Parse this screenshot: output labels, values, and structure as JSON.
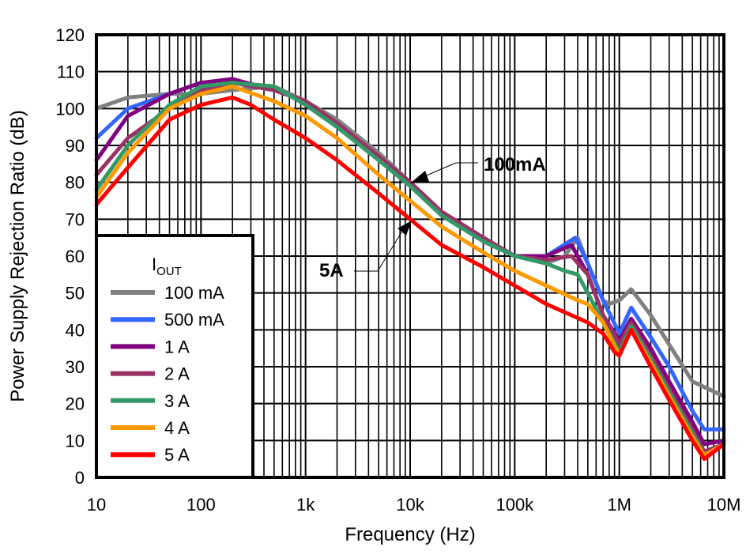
{
  "chart_data": {
    "type": "line",
    "xlabel": "Frequency (Hz)",
    "ylabel": "Power Supply Rejection Ratio (dB)",
    "x_scale": "log",
    "xlim": [
      10,
      10000000
    ],
    "ylim": [
      0,
      120
    ],
    "grid": true,
    "x_ticks": [
      {
        "value": 10,
        "label": "10"
      },
      {
        "value": 100,
        "label": "100"
      },
      {
        "value": 1000,
        "label": "1k"
      },
      {
        "value": 10000,
        "label": "10k"
      },
      {
        "value": 100000,
        "label": "100k"
      },
      {
        "value": 1000000,
        "label": "1M"
      },
      {
        "value": 10000000,
        "label": "10M"
      }
    ],
    "y_ticks": [
      0,
      10,
      20,
      30,
      40,
      50,
      60,
      70,
      80,
      90,
      100,
      110,
      120
    ],
    "legend": {
      "title_main": "I",
      "title_sub": "OUT",
      "placement": "bottom-left"
    },
    "annotations": [
      {
        "text": "100mA",
        "points_to": {
          "x": 10000,
          "y": 80
        }
      },
      {
        "text": "5A",
        "points_to": {
          "x": 10000,
          "y": 70
        }
      }
    ],
    "series": [
      {
        "name": "100 mA",
        "color": "#808080",
        "points": [
          [
            10,
            100
          ],
          [
            20,
            103
          ],
          [
            50,
            104
          ],
          [
            100,
            104
          ],
          [
            200,
            105
          ],
          [
            500,
            106
          ],
          [
            1000,
            102
          ],
          [
            2000,
            97
          ],
          [
            5000,
            88
          ],
          [
            10000,
            80
          ],
          [
            20000,
            72
          ],
          [
            50000,
            65
          ],
          [
            100000,
            60
          ],
          [
            200000,
            58
          ],
          [
            300000,
            60
          ],
          [
            400000,
            65
          ],
          [
            500000,
            58
          ],
          [
            700000,
            48
          ],
          [
            800000,
            47
          ],
          [
            1000000,
            48
          ],
          [
            1300000,
            51
          ],
          [
            2000000,
            44
          ],
          [
            3000000,
            36
          ],
          [
            5000000,
            26
          ],
          [
            10000000,
            22
          ]
        ]
      },
      {
        "name": "500 mA",
        "color": "#3366ff",
        "points": [
          [
            10,
            92
          ],
          [
            20,
            100
          ],
          [
            50,
            104
          ],
          [
            100,
            107
          ],
          [
            200,
            107
          ],
          [
            500,
            105
          ],
          [
            1000,
            102
          ],
          [
            2000,
            96
          ],
          [
            5000,
            87
          ],
          [
            10000,
            80
          ],
          [
            20000,
            72
          ],
          [
            50000,
            65
          ],
          [
            100000,
            60
          ],
          [
            200000,
            60
          ],
          [
            380000,
            65
          ],
          [
            500000,
            58
          ],
          [
            700000,
            48
          ],
          [
            1000000,
            39
          ],
          [
            1300000,
            46
          ],
          [
            2000000,
            38
          ],
          [
            3000000,
            30
          ],
          [
            5000000,
            18
          ],
          [
            6500000,
            13
          ],
          [
            10000000,
            13
          ]
        ]
      },
      {
        "name": "1 A",
        "color": "#800080",
        "points": [
          [
            10,
            86
          ],
          [
            20,
            98
          ],
          [
            50,
            104
          ],
          [
            100,
            107
          ],
          [
            200,
            108
          ],
          [
            500,
            105
          ],
          [
            1000,
            102
          ],
          [
            2000,
            96
          ],
          [
            5000,
            87
          ],
          [
            10000,
            80
          ],
          [
            20000,
            72
          ],
          [
            50000,
            65
          ],
          [
            100000,
            60
          ],
          [
            200000,
            60
          ],
          [
            350000,
            63
          ],
          [
            500000,
            55
          ],
          [
            700000,
            44
          ],
          [
            1000000,
            37
          ],
          [
            1300000,
            43
          ],
          [
            2000000,
            35
          ],
          [
            3000000,
            26
          ],
          [
            5000000,
            15
          ],
          [
            6500000,
            9
          ],
          [
            10000000,
            10
          ]
        ]
      },
      {
        "name": "2 A",
        "color": "#993366",
        "points": [
          [
            10,
            82
          ],
          [
            20,
            92
          ],
          [
            50,
            100
          ],
          [
            100,
            105
          ],
          [
            200,
            107
          ],
          [
            500,
            105
          ],
          [
            1000,
            102
          ],
          [
            2000,
            96
          ],
          [
            5000,
            87
          ],
          [
            10000,
            80
          ],
          [
            20000,
            72
          ],
          [
            50000,
            65
          ],
          [
            100000,
            60
          ],
          [
            200000,
            59
          ],
          [
            350000,
            60
          ],
          [
            500000,
            55
          ],
          [
            700000,
            44
          ],
          [
            1000000,
            36
          ],
          [
            1300000,
            42
          ],
          [
            2000000,
            33
          ],
          [
            3000000,
            24
          ],
          [
            5000000,
            13
          ],
          [
            6500000,
            7
          ],
          [
            10000000,
            9
          ]
        ]
      },
      {
        "name": "3 A",
        "color": "#339966",
        "points": [
          [
            10,
            78
          ],
          [
            20,
            90
          ],
          [
            50,
            101
          ],
          [
            100,
            106
          ],
          [
            200,
            107
          ],
          [
            500,
            106
          ],
          [
            1000,
            101
          ],
          [
            2000,
            95
          ],
          [
            5000,
            86
          ],
          [
            10000,
            79
          ],
          [
            20000,
            71
          ],
          [
            50000,
            64
          ],
          [
            100000,
            60
          ],
          [
            200000,
            58
          ],
          [
            300000,
            56
          ],
          [
            400000,
            55
          ],
          [
            500000,
            50
          ],
          [
            700000,
            42
          ],
          [
            1000000,
            34
          ],
          [
            1300000,
            41
          ],
          [
            2000000,
            32
          ],
          [
            3000000,
            23
          ],
          [
            5000000,
            12
          ],
          [
            6500000,
            6
          ],
          [
            10000000,
            9
          ]
        ]
      },
      {
        "name": "4 A",
        "color": "#ff9900",
        "points": [
          [
            10,
            76
          ],
          [
            20,
            88
          ],
          [
            50,
            100
          ],
          [
            100,
            104
          ],
          [
            200,
            106
          ],
          [
            500,
            102
          ],
          [
            1000,
            98
          ],
          [
            2000,
            92
          ],
          [
            5000,
            82
          ],
          [
            10000,
            75
          ],
          [
            20000,
            68
          ],
          [
            50000,
            61
          ],
          [
            100000,
            56
          ],
          [
            200000,
            52
          ],
          [
            400000,
            48
          ],
          [
            500000,
            47
          ],
          [
            700000,
            42
          ],
          [
            1000000,
            33
          ],
          [
            1300000,
            40
          ],
          [
            2000000,
            31
          ],
          [
            3000000,
            22
          ],
          [
            5000000,
            11
          ],
          [
            6500000,
            6
          ],
          [
            10000000,
            9
          ]
        ]
      },
      {
        "name": "5 A",
        "color": "#ff0000",
        "points": [
          [
            10,
            74
          ],
          [
            20,
            84
          ],
          [
            50,
            97
          ],
          [
            100,
            101
          ],
          [
            200,
            103
          ],
          [
            300,
            101
          ],
          [
            500,
            97
          ],
          [
            1000,
            92
          ],
          [
            2000,
            86
          ],
          [
            5000,
            77
          ],
          [
            10000,
            70
          ],
          [
            20000,
            63
          ],
          [
            50000,
            57
          ],
          [
            100000,
            52
          ],
          [
            200000,
            47
          ],
          [
            500000,
            42
          ],
          [
            700000,
            39
          ],
          [
            900000,
            34
          ],
          [
            1000000,
            33
          ],
          [
            1300000,
            40
          ],
          [
            2000000,
            30
          ],
          [
            3000000,
            21
          ],
          [
            5000000,
            10
          ],
          [
            6500000,
            5
          ],
          [
            10000000,
            9
          ]
        ]
      }
    ]
  }
}
